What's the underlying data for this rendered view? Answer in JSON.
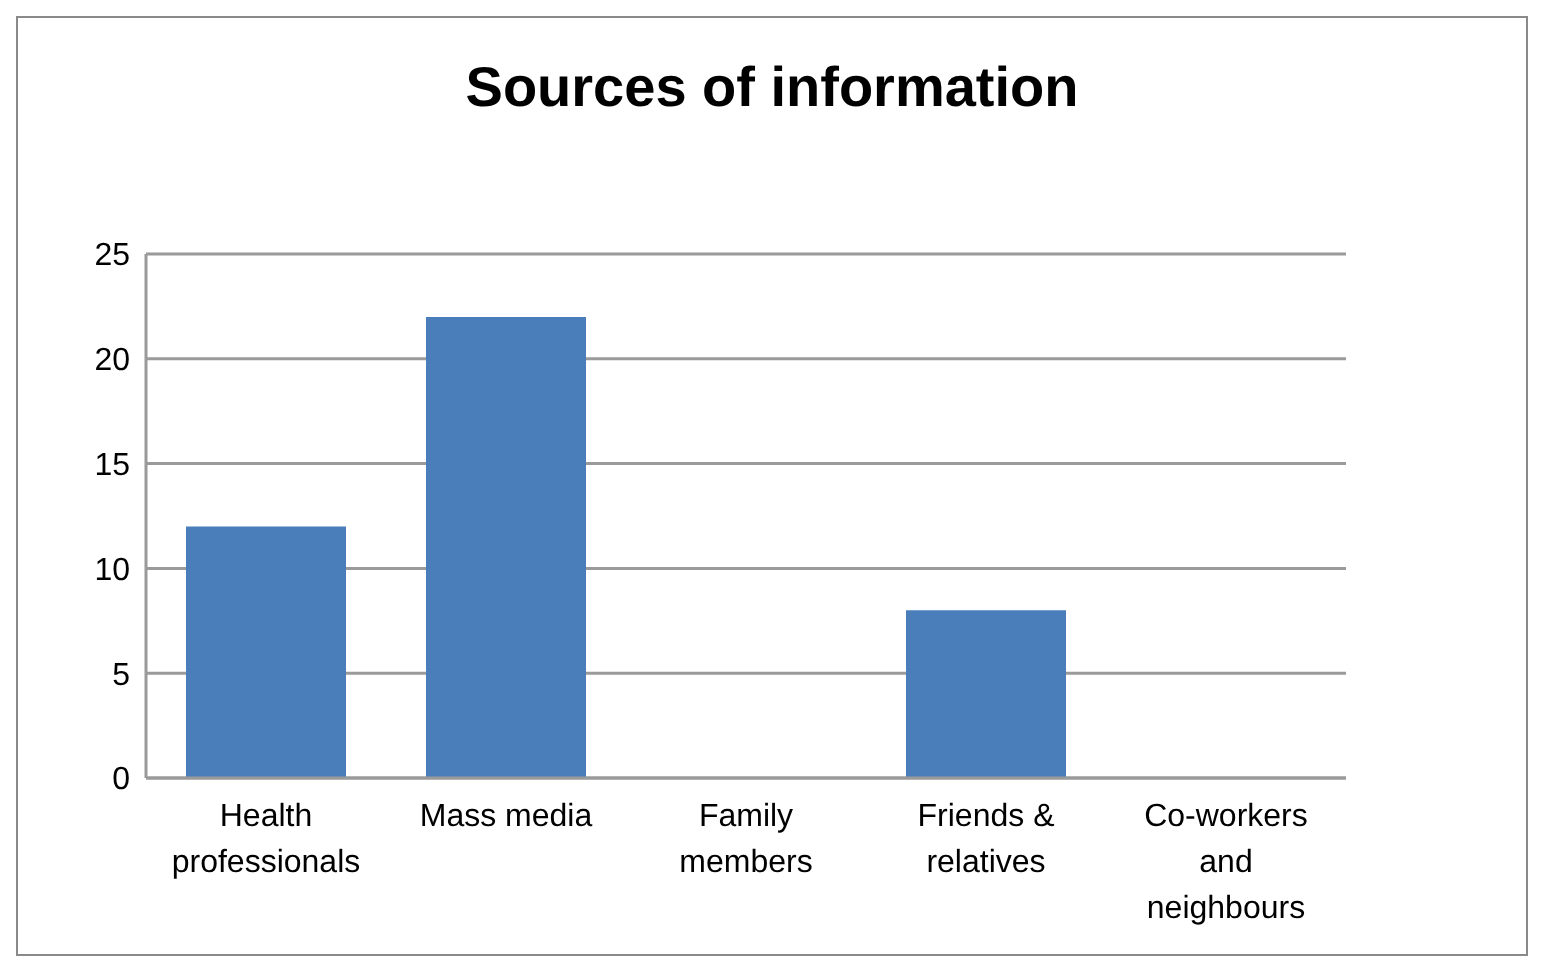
{
  "chart_data": {
    "type": "bar",
    "title": "Sources of information",
    "categories": [
      "Health professionals",
      "Mass media",
      "Family members",
      "Friends & relatives",
      "Co-workers and neighbours"
    ],
    "values": [
      12,
      22,
      0,
      8,
      0
    ],
    "color": "#4a7ebb",
    "ylim": [
      0,
      25
    ],
    "yticks": [
      0,
      5,
      10,
      15,
      20,
      25
    ],
    "grid": "y"
  }
}
